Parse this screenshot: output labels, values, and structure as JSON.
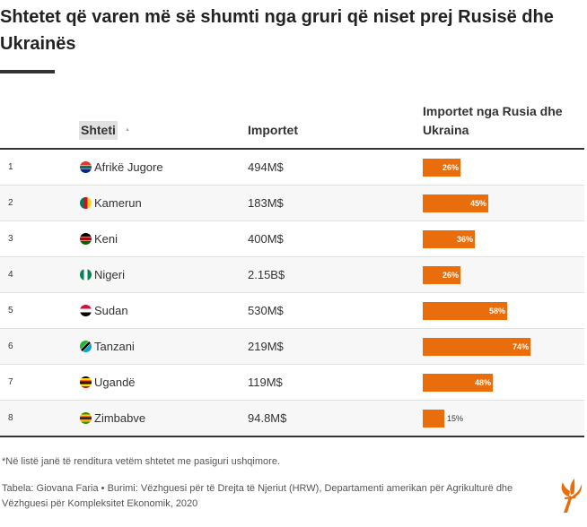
{
  "title": "Shtetet që varen më së shumti nga gruri që niset prej Rusisë dhe Ukrainës",
  "columns": {
    "country": "Shteti",
    "imports": "Importet",
    "share": "Importet nga Rusia dhe Ukraina"
  },
  "colors": {
    "bar": "#e96d0a",
    "rule": "#333333"
  },
  "rows": [
    {
      "rank": "1",
      "country": "Afrikë Jugore",
      "imports": "494M$",
      "share": 26,
      "share_label": "26%",
      "flag": "south-africa-flag-icon"
    },
    {
      "rank": "2",
      "country": "Kamerun",
      "imports": "183M$",
      "share": 45,
      "share_label": "45%",
      "flag": "cameroon-flag-icon"
    },
    {
      "rank": "3",
      "country": "Keni",
      "imports": "400M$",
      "share": 36,
      "share_label": "36%",
      "flag": "kenya-flag-icon"
    },
    {
      "rank": "4",
      "country": "Nigeri",
      "imports": "2.15B$",
      "share": 26,
      "share_label": "26%",
      "flag": "nigeria-flag-icon"
    },
    {
      "rank": "5",
      "country": "Sudan",
      "imports": "530M$",
      "share": 58,
      "share_label": "58%",
      "flag": "sudan-flag-icon"
    },
    {
      "rank": "6",
      "country": "Tanzani",
      "imports": "219M$",
      "share": 74,
      "share_label": "74%",
      "flag": "tanzania-flag-icon"
    },
    {
      "rank": "7",
      "country": "Ugandë",
      "imports": "119M$",
      "share": 48,
      "share_label": "48%",
      "flag": "uganda-flag-icon"
    },
    {
      "rank": "8",
      "country": "Zimbabve",
      "imports": "94.8M$",
      "share": 15,
      "share_label": "15%",
      "flag": "zimbabwe-flag-icon"
    }
  ],
  "footnote": "*Në listë janë të renditura vetëm shtetet me pasiguri ushqimore.",
  "source": "Tabela: Giovana Faria • Burimi: Vëzhguesi për të Drejta të Njeriut (HRW), Departamenti amerikan për Agrikulturë dhe Vëzhguesi për Kompleksitet Ekonomik, 2020",
  "logo": "rferl-torch-logo-icon"
}
